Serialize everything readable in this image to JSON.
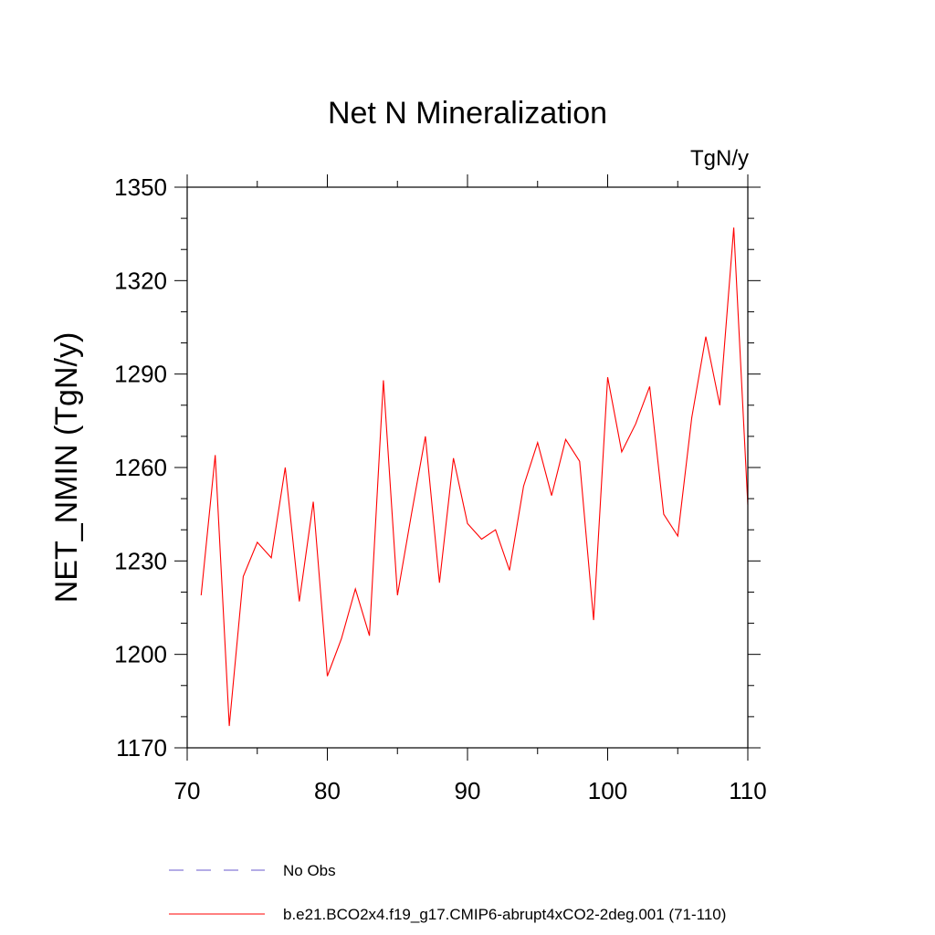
{
  "chart_data": {
    "type": "line",
    "title": "Net N Mineralization",
    "units": "TgN/y",
    "ylabel": "NET_NMIN  (TgN/y)",
    "xlabel": "",
    "xlim": [
      70,
      110
    ],
    "ylim": [
      1170,
      1350
    ],
    "xticks": [
      70,
      80,
      90,
      100,
      110
    ],
    "yticks": [
      1170,
      1200,
      1230,
      1260,
      1290,
      1320,
      1350
    ],
    "x_minor_step": 5,
    "y_minor_step": 10,
    "grid": false,
    "series": [
      {
        "name": "b.e21.BCO2x4.f19_g17.CMIP6-abrupt4xCO2-2deg.001 (71-110)",
        "color": "#ff0000",
        "style": "solid",
        "x": [
          71,
          72,
          73,
          74,
          75,
          76,
          77,
          78,
          79,
          80,
          81,
          82,
          83,
          84,
          85,
          86,
          87,
          88,
          89,
          90,
          91,
          92,
          93,
          94,
          95,
          96,
          97,
          98,
          99,
          100,
          101,
          102,
          103,
          104,
          105,
          106,
          107,
          108,
          109,
          110
        ],
        "values": [
          1219,
          1264,
          1177,
          1225,
          1236,
          1231,
          1260,
          1217,
          1249,
          1193,
          1205,
          1221,
          1206,
          1288,
          1219,
          1245,
          1270,
          1223,
          1263,
          1242,
          1237,
          1240,
          1227,
          1254,
          1268,
          1251,
          1269,
          1262,
          1211,
          1289,
          1265,
          1274,
          1286,
          1245,
          1238,
          1276,
          1302,
          1280,
          1337,
          1248
        ]
      }
    ],
    "legend": {
      "placement": "bottom",
      "entries": [
        {
          "label": "No Obs",
          "color": "#6a5acd",
          "style": "dashed"
        },
        {
          "label": "b.e21.BCO2x4.f19_g17.CMIP6-abrupt4xCO2-2deg.001 (71-110)",
          "color": "#ff0000",
          "style": "solid"
        }
      ]
    }
  }
}
